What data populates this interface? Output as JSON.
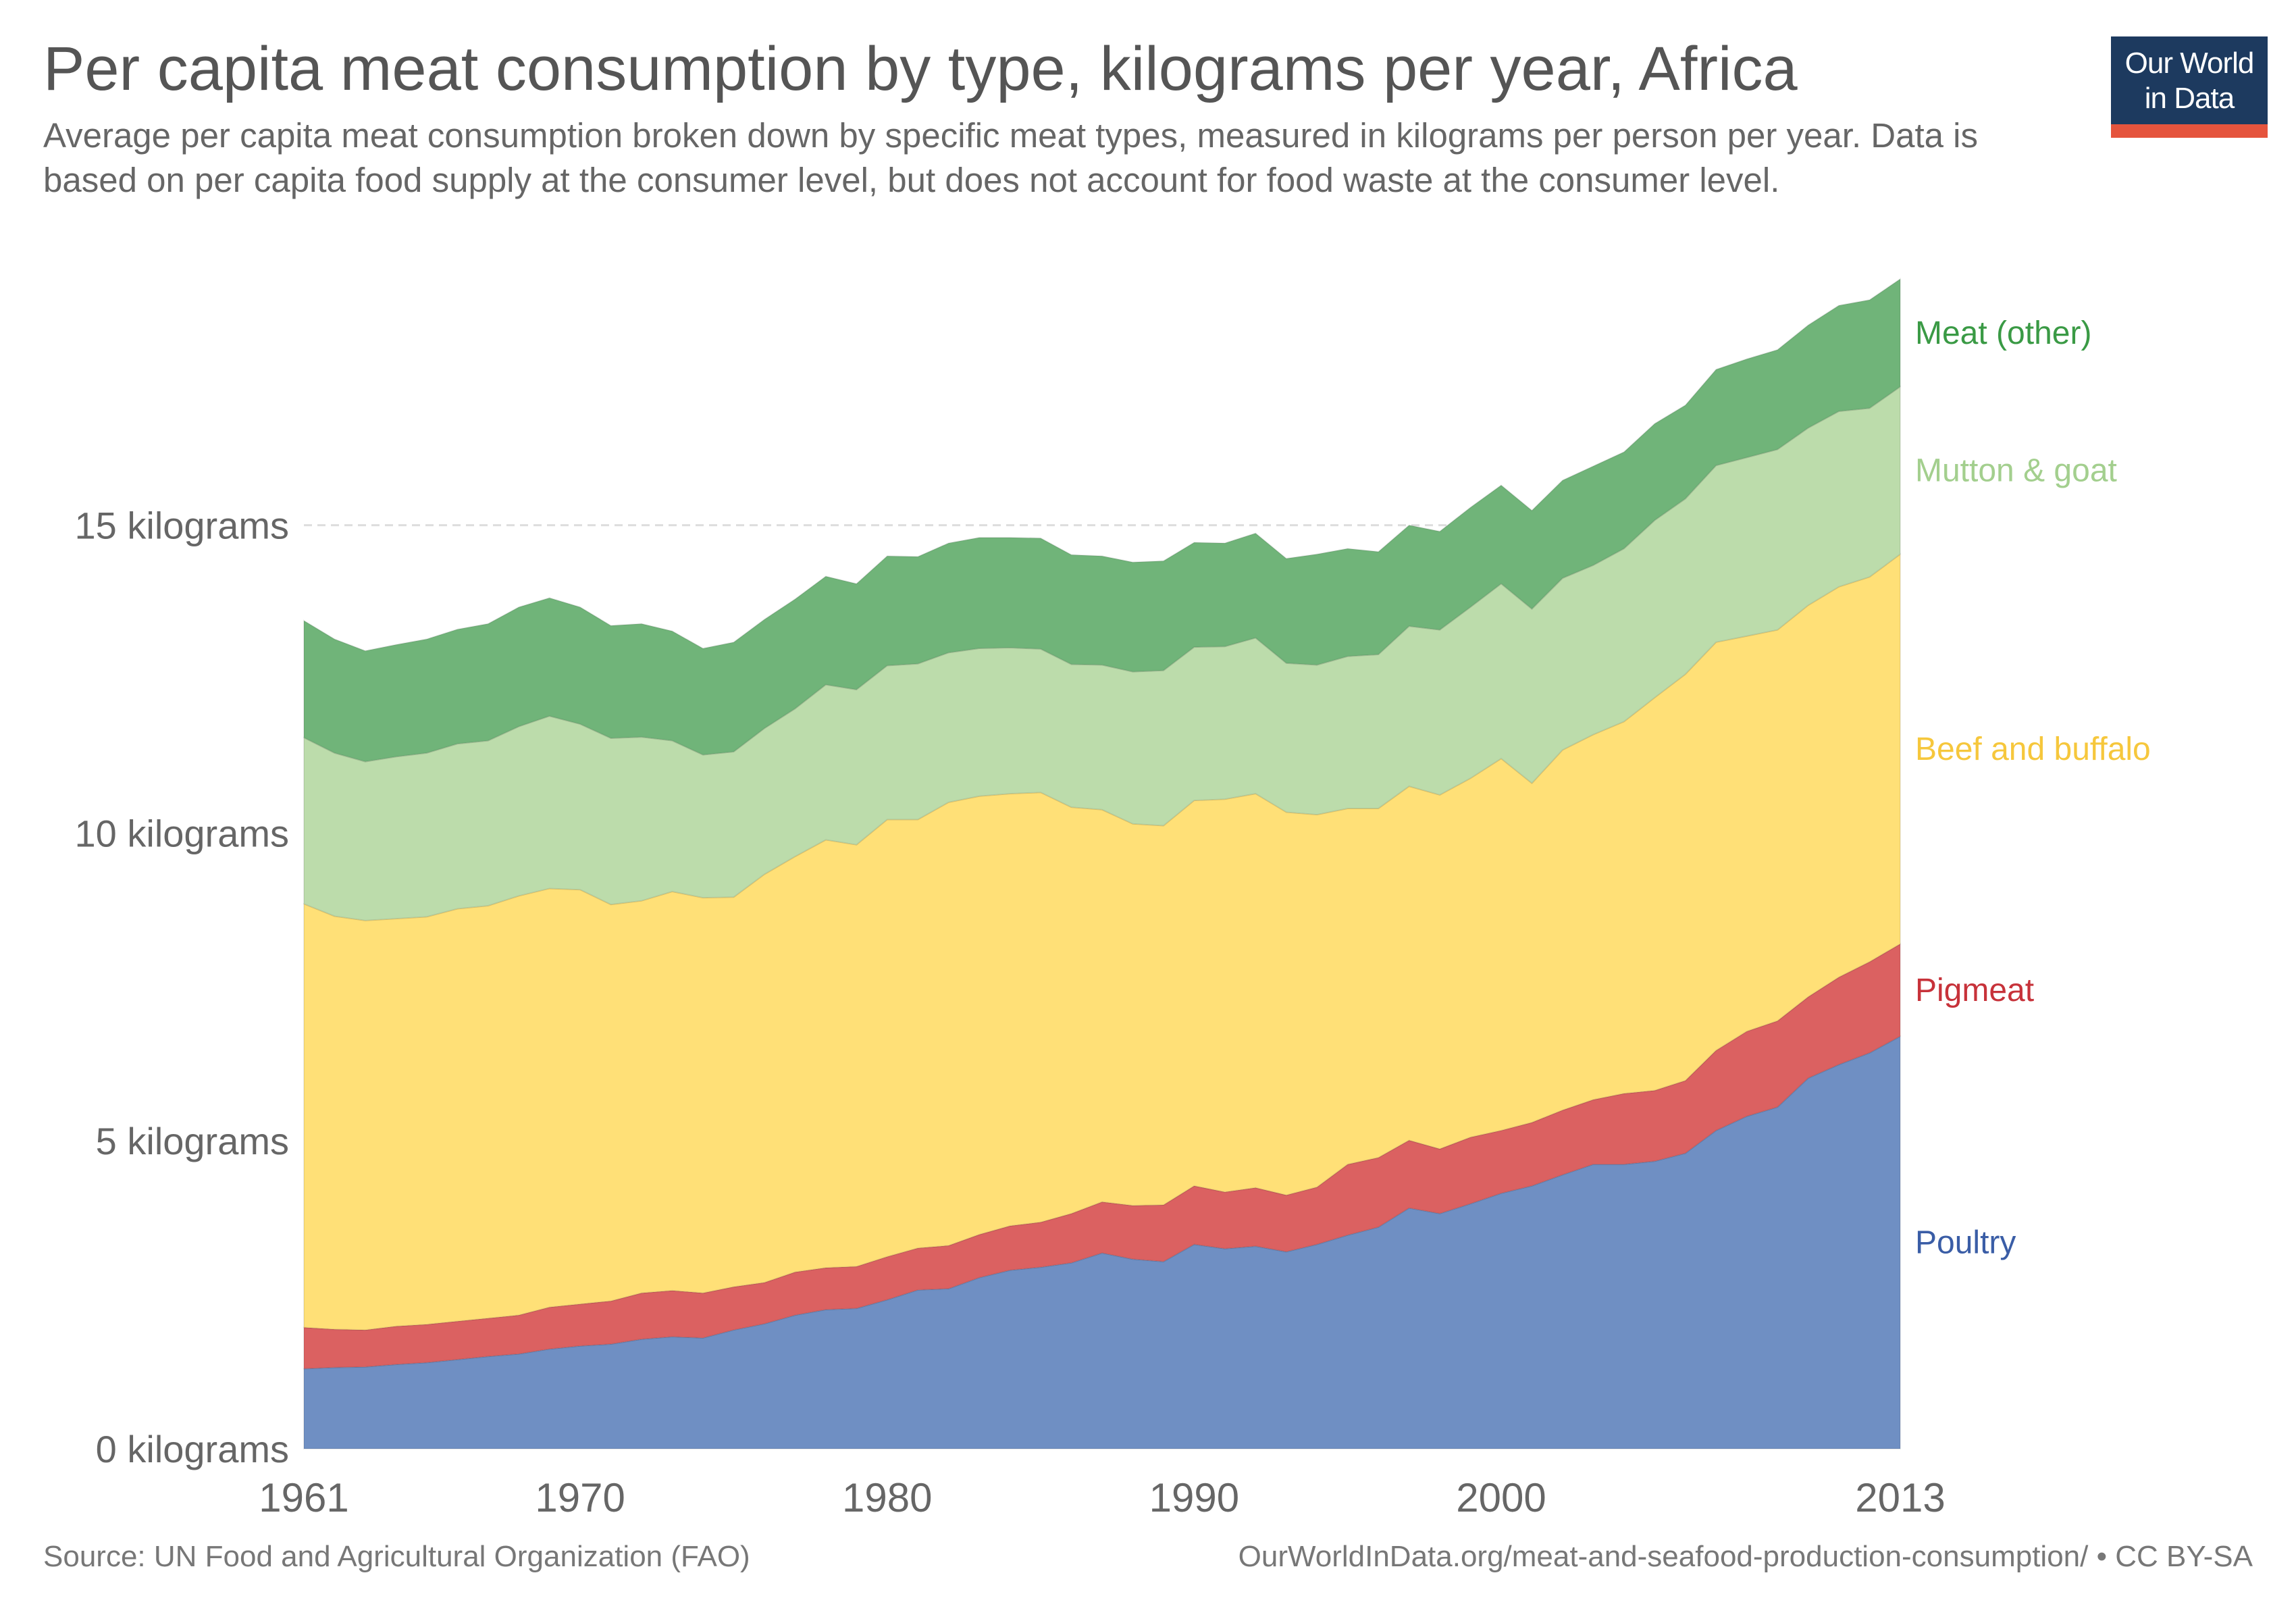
{
  "header": {
    "title": "Per capita meat consumption by type, kilograms per year, Africa",
    "subtitle": "Average per capita meat consumption broken down by specific meat types, measured in kilograms per person per year. Data is based on per capita food supply at the consumer level, but does not account for food waste at the consumer level.",
    "logo_line1": "Our World",
    "logo_line2": "in Data"
  },
  "footer": {
    "source": "Source: UN Food and Agricultural Organization (FAO)",
    "url": "OurWorldInData.org/meat-and-seafood-production-consumption/ • CC BY-SA"
  },
  "colors": {
    "poultry": "#6f8fc3",
    "pigmeat": "#db6161",
    "beef": "#ffe077",
    "mutton": "#bcdcab",
    "other": "#70b479",
    "poultry_label": "#3a5da6",
    "pigmeat_label": "#c7323a",
    "beef_label": "#f6c73c",
    "mutton_label": "#a3cf8e",
    "other_label": "#3a9a45"
  },
  "chart_data": {
    "type": "area",
    "stacked": true,
    "title": "Per capita meat consumption by type, kilograms per year, Africa",
    "xlabel": "",
    "ylabel": "",
    "xlim": [
      1961,
      2013
    ],
    "ylim": [
      0,
      19
    ],
    "x_ticks": [
      1961,
      1970,
      1980,
      1990,
      2000,
      2013
    ],
    "y_ticks": [
      {
        "value": 0,
        "label": "0 kilograms"
      },
      {
        "value": 5,
        "label": "5 kilograms"
      },
      {
        "value": 10,
        "label": "10 kilograms"
      },
      {
        "value": 15,
        "label": "15 kilograms"
      }
    ],
    "grid": "horizontal dashed",
    "legend": "right, inline labels",
    "x": [
      1961,
      1962,
      1963,
      1964,
      1965,
      1966,
      1967,
      1968,
      1969,
      1970,
      1971,
      1972,
      1973,
      1974,
      1975,
      1976,
      1977,
      1978,
      1979,
      1980,
      1981,
      1982,
      1983,
      1984,
      1985,
      1986,
      1987,
      1988,
      1989,
      1990,
      1991,
      1992,
      1993,
      1994,
      1995,
      1996,
      1997,
      1998,
      1999,
      2000,
      2001,
      2002,
      2003,
      2004,
      2005,
      2006,
      2007,
      2008,
      2009,
      2010,
      2011,
      2012,
      2013
    ],
    "series": [
      {
        "name": "Poultry",
        "values": [
          1.3,
          1.32,
          1.33,
          1.37,
          1.4,
          1.45,
          1.5,
          1.54,
          1.62,
          1.67,
          1.7,
          1.78,
          1.82,
          1.8,
          1.93,
          2.03,
          2.17,
          2.26,
          2.28,
          2.42,
          2.58,
          2.6,
          2.78,
          2.9,
          2.95,
          3.02,
          3.18,
          3.08,
          3.04,
          3.32,
          3.25,
          3.29,
          3.2,
          3.32,
          3.47,
          3.6,
          3.91,
          3.82,
          3.98,
          4.15,
          4.27,
          4.45,
          4.62,
          4.62,
          4.67,
          4.8,
          5.17,
          5.4,
          5.55,
          6.02,
          6.24,
          6.43,
          6.7
        ]
      },
      {
        "name": "Pigmeat",
        "values": [
          0.67,
          0.62,
          0.6,
          0.62,
          0.62,
          0.62,
          0.62,
          0.63,
          0.68,
          0.68,
          0.7,
          0.75,
          0.75,
          0.73,
          0.7,
          0.67,
          0.7,
          0.68,
          0.68,
          0.7,
          0.68,
          0.7,
          0.7,
          0.72,
          0.73,
          0.8,
          0.83,
          0.87,
          0.92,
          0.95,
          0.92,
          0.95,
          0.92,
          0.93,
          1.15,
          1.13,
          1.1,
          1.05,
          1.08,
          1.02,
          1.03,
          1.05,
          1.05,
          1.15,
          1.15,
          1.18,
          1.3,
          1.38,
          1.4,
          1.32,
          1.42,
          1.48,
          1.5
        ]
      },
      {
        "name": "Beef and buffalo",
        "values": [
          6.88,
          6.71,
          6.65,
          6.62,
          6.62,
          6.7,
          6.7,
          6.81,
          6.8,
          6.73,
          6.44,
          6.37,
          6.48,
          6.42,
          6.33,
          6.63,
          6.75,
          6.95,
          6.85,
          7.1,
          6.96,
          7.2,
          7.12,
          7.02,
          6.98,
          6.6,
          6.37,
          6.2,
          6.16,
          6.26,
          6.38,
          6.4,
          6.22,
          6.05,
          5.78,
          5.67,
          5.75,
          5.75,
          5.83,
          6.04,
          5.51,
          5.85,
          5.93,
          6.04,
          6.38,
          6.6,
          6.63,
          6.42,
          6.35,
          6.36,
          6.34,
          6.25,
          6.33
        ]
      },
      {
        "name": "Mutton & goat",
        "values": [
          2.7,
          2.65,
          2.58,
          2.63,
          2.66,
          2.68,
          2.68,
          2.75,
          2.8,
          2.69,
          2.7,
          2.66,
          2.45,
          2.32,
          2.36,
          2.37,
          2.4,
          2.52,
          2.52,
          2.5,
          2.53,
          2.43,
          2.4,
          2.37,
          2.33,
          2.32,
          2.35,
          2.47,
          2.52,
          2.49,
          2.48,
          2.53,
          2.42,
          2.43,
          2.47,
          2.5,
          2.6,
          2.68,
          2.78,
          2.84,
          2.83,
          2.79,
          2.75,
          2.81,
          2.88,
          2.85,
          2.87,
          2.9,
          2.93,
          2.88,
          2.85,
          2.74,
          2.72
        ]
      },
      {
        "name": "Meat (other)",
        "values": [
          1.9,
          1.85,
          1.8,
          1.82,
          1.85,
          1.86,
          1.9,
          1.94,
          1.92,
          1.9,
          1.83,
          1.84,
          1.78,
          1.73,
          1.78,
          1.77,
          1.78,
          1.76,
          1.72,
          1.78,
          1.74,
          1.78,
          1.8,
          1.79,
          1.8,
          1.78,
          1.77,
          1.78,
          1.78,
          1.7,
          1.68,
          1.7,
          1.7,
          1.8,
          1.75,
          1.67,
          1.64,
          1.6,
          1.62,
          1.6,
          1.6,
          1.59,
          1.61,
          1.57,
          1.57,
          1.52,
          1.56,
          1.6,
          1.62,
          1.67,
          1.72,
          1.76,
          1.75
        ]
      }
    ]
  }
}
